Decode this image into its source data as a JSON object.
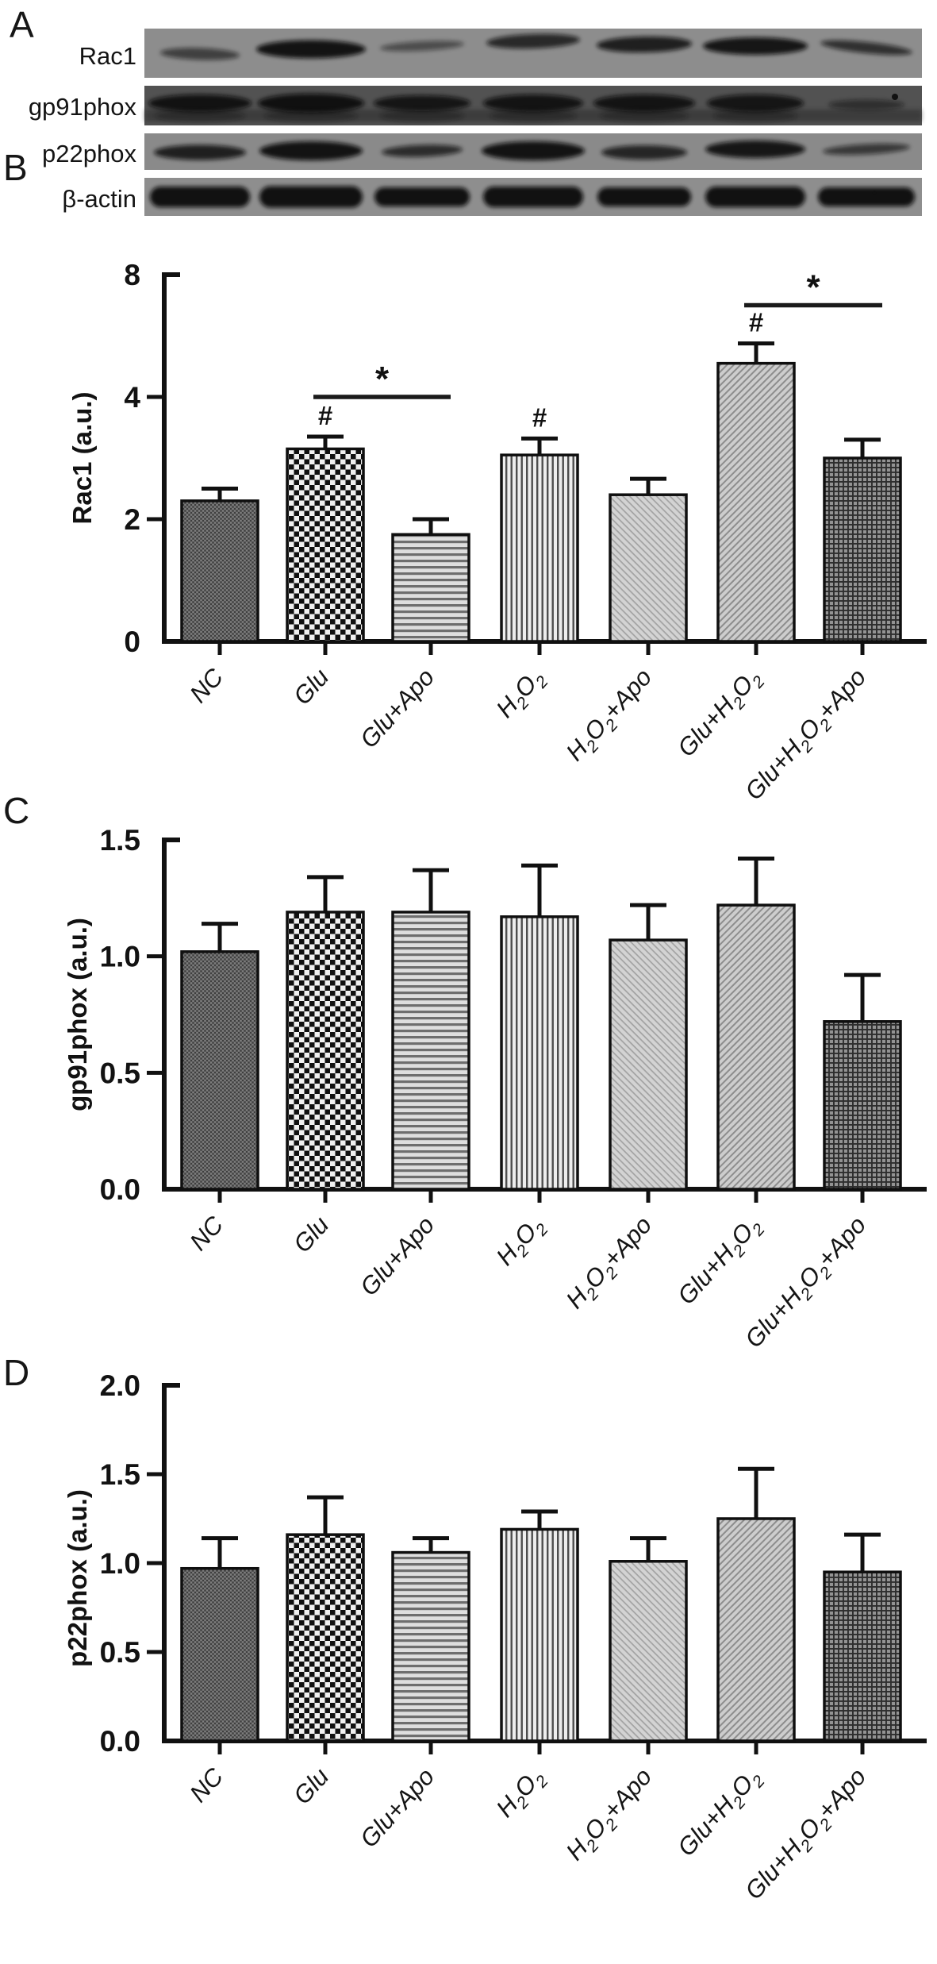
{
  "panels": {
    "a": {
      "label": "A",
      "lane_count": 7,
      "blot_rows": [
        {
          "protein": "Rac1",
          "band_intensities": [
            0.6,
            0.95,
            0.5,
            0.78,
            0.86,
            0.93,
            0.72
          ]
        },
        {
          "protein": "gp91phox",
          "band_intensities": [
            0.92,
            0.95,
            0.88,
            0.9,
            0.9,
            0.88,
            0.5
          ]
        },
        {
          "protein": "p22phox",
          "band_intensities": [
            0.85,
            0.95,
            0.75,
            0.95,
            0.8,
            0.92,
            0.65
          ]
        },
        {
          "protein": "β-actin",
          "band_intensities": [
            0.97,
            0.97,
            0.97,
            0.97,
            0.97,
            0.97,
            0.97
          ]
        }
      ]
    },
    "b": {
      "label": "B"
    },
    "c": {
      "label": "C"
    },
    "d": {
      "label": "D"
    }
  },
  "chart_data": [
    {
      "panel": "B",
      "type": "bar",
      "title": "",
      "xlabel": "",
      "ylabel": "Rac1 (a.u.)",
      "categories": [
        "NC",
        "Glu",
        "Glu+Apo",
        "H2O2",
        "H2O2+Apo",
        "Glu+H2O2",
        "Glu+H2O2+Apo"
      ],
      "values": [
        2.3,
        3.15,
        1.75,
        3.05,
        2.4,
        5.1,
        3.0
      ],
      "errors_plus": [
        0.2,
        0.2,
        0.25,
        0.27,
        0.26,
        0.65,
        0.3
      ],
      "yticks": [
        0,
        2,
        4,
        8
      ],
      "ytick_labels": [
        "0",
        "2",
        "4",
        "8"
      ],
      "ytick_spacing": "equal-as-printed",
      "grid": false,
      "hash_annotated": [
        "Glu",
        "H2O2",
        "Glu+H2O2"
      ],
      "hash_symbol": "#",
      "sig_lines": [
        {
          "from": "Glu",
          "to": "Glu+Apo",
          "label": "*",
          "y": 4.0
        },
        {
          "from": "Glu+H2O2",
          "to": "Glu+H2O2+Apo",
          "label": "*",
          "y": 7.0
        }
      ]
    },
    {
      "panel": "C",
      "type": "bar",
      "title": "",
      "xlabel": "",
      "ylabel": "gp91phox (a.u.)",
      "categories": [
        "NC",
        "Glu",
        "Glu+Apo",
        "H2O2",
        "H2O2+Apo",
        "Glu+H2O2",
        "Glu+H2O2+Apo"
      ],
      "values": [
        1.02,
        1.19,
        1.19,
        1.17,
        1.07,
        1.22,
        0.72
      ],
      "errors_plus": [
        0.12,
        0.15,
        0.18,
        0.22,
        0.15,
        0.2,
        0.2
      ],
      "yticks": [
        0,
        0.5,
        1.0,
        1.5
      ],
      "ytick_labels": [
        "0.0",
        "0.5",
        "1.0",
        "1.5"
      ],
      "ytick_spacing": "linear",
      "grid": false,
      "hash_annotated": [],
      "hash_symbol": "#",
      "sig_lines": []
    },
    {
      "panel": "D",
      "type": "bar",
      "title": "",
      "xlabel": "",
      "ylabel": "p22phox (a.u.)",
      "categories": [
        "NC",
        "Glu",
        "Glu+Apo",
        "H2O2",
        "H2O2+Apo",
        "Glu+H2O2",
        "Glu+H2O2+Apo"
      ],
      "values": [
        0.97,
        1.16,
        1.06,
        1.19,
        1.01,
        1.25,
        0.95
      ],
      "errors_plus": [
        0.17,
        0.21,
        0.08,
        0.1,
        0.13,
        0.28,
        0.21
      ],
      "yticks": [
        0,
        0.5,
        1.0,
        1.5,
        2.0
      ],
      "ytick_labels": [
        "0.0",
        "0.5",
        "1.0",
        "1.5",
        "2.0"
      ],
      "ytick_spacing": "linear",
      "grid": false,
      "hash_annotated": [],
      "hash_symbol": "#",
      "sig_lines": []
    }
  ]
}
